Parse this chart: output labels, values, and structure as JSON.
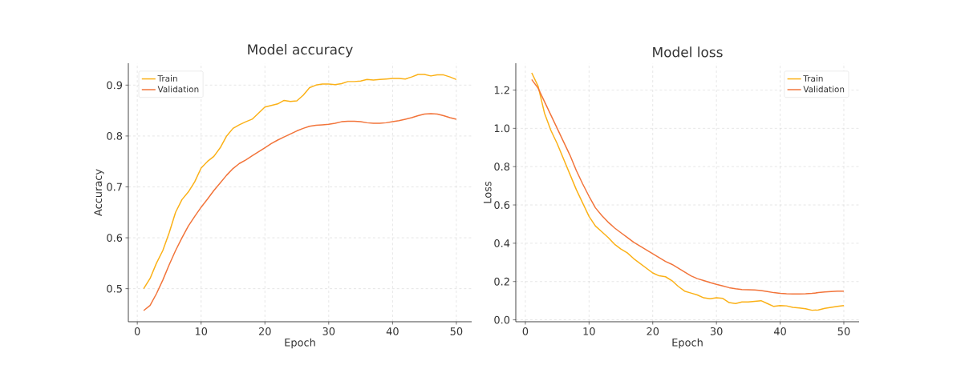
{
  "chart_data": [
    {
      "type": "line",
      "title": "Model accuracy",
      "xlabel": "Epoch",
      "ylabel": "Accuracy",
      "legend": "top left",
      "grid": true,
      "x": [
        1,
        2,
        3,
        4,
        5,
        6,
        7,
        8,
        9,
        10,
        11,
        12,
        13,
        14,
        15,
        16,
        17,
        18,
        19,
        20,
        21,
        22,
        23,
        24,
        25,
        26,
        27,
        28,
        29,
        30,
        31,
        32,
        33,
        34,
        35,
        36,
        37,
        38,
        39,
        40,
        41,
        42,
        43,
        44,
        45,
        46,
        47,
        48,
        49,
        50
      ],
      "xlim": [
        -1.4,
        52.4
      ],
      "xticks": [
        0,
        10,
        20,
        30,
        40,
        50
      ],
      "ylim": [
        0.435,
        0.943
      ],
      "yticks": [
        0.5,
        0.6,
        0.7,
        0.8,
        0.9
      ],
      "series": [
        {
          "name": "Train",
          "color": "#fbb117",
          "values": [
            0.5,
            0.52,
            0.55,
            0.575,
            0.61,
            0.65,
            0.675,
            0.69,
            0.71,
            0.737,
            0.75,
            0.76,
            0.777,
            0.8,
            0.815,
            0.822,
            0.828,
            0.833,
            0.845,
            0.857,
            0.86,
            0.863,
            0.87,
            0.868,
            0.869,
            0.88,
            0.895,
            0.9,
            0.902,
            0.902,
            0.901,
            0.903,
            0.907,
            0.907,
            0.908,
            0.911,
            0.91,
            0.911,
            0.912,
            0.913,
            0.913,
            0.912,
            0.916,
            0.921,
            0.921,
            0.918,
            0.92,
            0.92,
            0.916,
            0.911
          ]
        },
        {
          "name": "Validation",
          "color": "#f2743a",
          "values": [
            0.457,
            0.467,
            0.49,
            0.517,
            0.547,
            0.575,
            0.6,
            0.623,
            0.642,
            0.66,
            0.676,
            0.693,
            0.708,
            0.723,
            0.736,
            0.746,
            0.753,
            0.761,
            0.769,
            0.777,
            0.785,
            0.792,
            0.798,
            0.804,
            0.81,
            0.815,
            0.819,
            0.821,
            0.822,
            0.823,
            0.825,
            0.828,
            0.829,
            0.829,
            0.828,
            0.826,
            0.825,
            0.825,
            0.826,
            0.828,
            0.83,
            0.833,
            0.836,
            0.84,
            0.843,
            0.844,
            0.843,
            0.84,
            0.836,
            0.833
          ]
        }
      ]
    },
    {
      "type": "line",
      "title": "Model loss",
      "xlabel": "Epoch",
      "ylabel": "Loss",
      "legend": "top right",
      "grid": true,
      "x": [
        1,
        2,
        3,
        4,
        5,
        6,
        7,
        8,
        9,
        10,
        11,
        12,
        13,
        14,
        15,
        16,
        17,
        18,
        19,
        20,
        21,
        22,
        23,
        24,
        25,
        26,
        27,
        28,
        29,
        30,
        31,
        32,
        33,
        34,
        35,
        36,
        37,
        38,
        39,
        40,
        41,
        42,
        43,
        44,
        45,
        46,
        47,
        48,
        49,
        50
      ],
      "xlim": [
        -1.5,
        52.4
      ],
      "xticks": [
        0,
        10,
        20,
        30,
        40,
        50
      ],
      "ylim": [
        -0.01,
        1.34
      ],
      "yticks": [
        {
          "value": 0,
          "label": "0.0"
        },
        0.2,
        0.4,
        0.6,
        0.8,
        {
          "value": 1,
          "label": "1.0"
        },
        1.2
      ],
      "series": [
        {
          "name": "Train",
          "color": "#fbb117",
          "values": [
            1.29,
            1.22,
            1.08,
            0.99,
            0.92,
            0.84,
            0.76,
            0.68,
            0.61,
            0.54,
            0.49,
            0.46,
            0.43,
            0.395,
            0.37,
            0.35,
            0.32,
            0.295,
            0.27,
            0.245,
            0.23,
            0.225,
            0.205,
            0.175,
            0.15,
            0.14,
            0.13,
            0.115,
            0.11,
            0.115,
            0.112,
            0.09,
            0.085,
            0.093,
            0.093,
            0.097,
            0.1,
            0.085,
            0.07,
            0.075,
            0.073,
            0.065,
            0.062,
            0.058,
            0.05,
            0.052,
            0.06,
            0.065,
            0.07,
            0.075
          ]
        },
        {
          "name": "Validation",
          "color": "#f2743a",
          "values": [
            1.255,
            1.21,
            1.14,
            1.07,
            1.0,
            0.93,
            0.86,
            0.78,
            0.71,
            0.645,
            0.585,
            0.545,
            0.51,
            0.48,
            0.455,
            0.43,
            0.405,
            0.385,
            0.365,
            0.345,
            0.325,
            0.305,
            0.29,
            0.27,
            0.25,
            0.23,
            0.215,
            0.205,
            0.195,
            0.185,
            0.177,
            0.168,
            0.162,
            0.158,
            0.157,
            0.156,
            0.153,
            0.148,
            0.142,
            0.138,
            0.136,
            0.135,
            0.135,
            0.136,
            0.138,
            0.142,
            0.146,
            0.148,
            0.15,
            0.15
          ]
        }
      ]
    }
  ]
}
